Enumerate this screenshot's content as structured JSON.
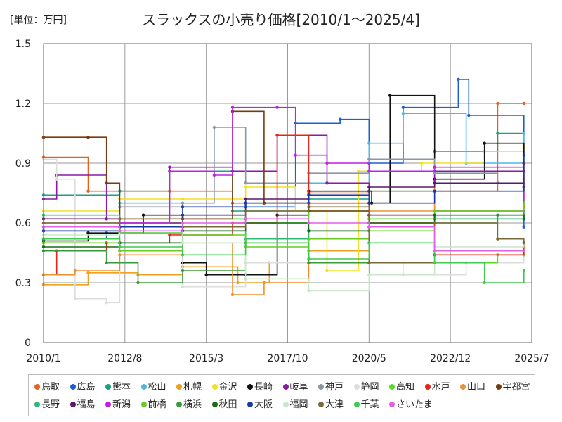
{
  "header": {
    "unit_label": "[単位：万円]",
    "title": "スラックスの小売り価格[2010/1～2025/4]"
  },
  "chart_data": {
    "type": "line",
    "title": "スラックスの小売り価格[2010/1～2025/4]",
    "unit": "[単位：万円]",
    "x_start": "2010/1",
    "x_end": "2025/7",
    "x_ticks": [
      "2010/1",
      "2012/8",
      "2015/3",
      "2017/10",
      "2020/5",
      "2022/12",
      "2025/7"
    ],
    "ylim": [
      0,
      1.5
    ],
    "y_ticks": [
      "0",
      "0.3",
      "0.6",
      "0.9",
      "1.2",
      "1.5"
    ],
    "grid": true,
    "legend_position": "bottom",
    "series": [
      {
        "name": "鳥取",
        "color": "#e8601c",
        "points": [
          [
            "2010/1",
            0.93
          ],
          [
            "2011/6",
            0.76
          ],
          [
            "2014/1",
            0.76
          ],
          [
            "2016/1",
            0.7
          ],
          [
            "2018/6",
            0.75
          ],
          [
            "2020/5",
            0.76
          ],
          [
            "2022/6",
            0.76
          ],
          [
            "2024/6",
            1.2
          ],
          [
            "2025/4",
            1.2
          ]
        ]
      },
      {
        "name": "広島",
        "color": "#1a5fd6",
        "points": [
          [
            "2010/1",
            0.52
          ],
          [
            "2012/1",
            0.55
          ],
          [
            "2014/6",
            0.62
          ],
          [
            "2016/6",
            0.68
          ],
          [
            "2018/1",
            1.1
          ],
          [
            "2019/6",
            1.12
          ],
          [
            "2020/5",
            0.9
          ],
          [
            "2021/6",
            1.18
          ],
          [
            "2023/3",
            1.32
          ],
          [
            "2023/7",
            1.14
          ],
          [
            "2025/4",
            0.58
          ]
        ]
      },
      {
        "name": "熊本",
        "color": "#1aa08a",
        "points": [
          [
            "2010/1",
            0.74
          ],
          [
            "2012/6",
            0.76
          ],
          [
            "2014/1",
            0.86
          ],
          [
            "2016/1",
            0.66
          ],
          [
            "2018/6",
            0.72
          ],
          [
            "2020/5",
            0.76
          ],
          [
            "2022/6",
            0.96
          ],
          [
            "2024/6",
            1.05
          ],
          [
            "2025/4",
            1.05
          ]
        ]
      },
      {
        "name": "松山",
        "color": "#4db8e8",
        "points": [
          [
            "2010/1",
            0.58
          ],
          [
            "2012/6",
            0.7
          ],
          [
            "2014/6",
            0.64
          ],
          [
            "2016/6",
            0.7
          ],
          [
            "2018/6",
            0.8
          ],
          [
            "2020/5",
            1.0
          ],
          [
            "2021/6",
            1.15
          ],
          [
            "2023/6",
            0.9
          ],
          [
            "2025/4",
            1.05
          ]
        ]
      },
      {
        "name": "札幌",
        "color": "#f0a020",
        "points": [
          [
            "2010/1",
            0.29
          ],
          [
            "2011/6",
            0.35
          ],
          [
            "2013/1",
            0.34
          ],
          [
            "2014/6",
            0.38
          ],
          [
            "2016/3",
            0.3
          ],
          [
            "2017/3",
            0.4
          ],
          [
            "2018/6",
            0.46
          ],
          [
            "2020/5",
            0.6
          ],
          [
            "2022/6",
            0.62
          ],
          [
            "2025/4",
            0.68
          ]
        ]
      },
      {
        "name": "金沢",
        "color": "#f4e020",
        "points": [
          [
            "2010/1",
            0.66
          ],
          [
            "2012/6",
            0.72
          ],
          [
            "2014/6",
            0.72
          ],
          [
            "2016/6",
            0.78
          ],
          [
            "2018/1",
            0.66
          ],
          [
            "2019/1",
            0.36
          ],
          [
            "2020/1",
            0.86
          ],
          [
            "2022/1",
            0.9
          ],
          [
            "2024/1",
            0.96
          ],
          [
            "2025/4",
            0.98
          ]
        ]
      },
      {
        "name": "長崎",
        "color": "#111111",
        "points": [
          [
            "2010/1",
            0.51
          ],
          [
            "2011/6",
            0.55
          ],
          [
            "2013/3",
            0.64
          ],
          [
            "2014/6",
            0.4
          ],
          [
            "2015/3",
            0.34
          ],
          [
            "2016/6",
            0.34
          ],
          [
            "2017/6",
            0.64
          ],
          [
            "2018/6",
            0.76
          ],
          [
            "2020/6",
            0.7
          ],
          [
            "2021/1",
            1.24
          ],
          [
            "2022/6",
            0.82
          ],
          [
            "2024/1",
            1.0
          ],
          [
            "2025/4",
            0.9
          ]
        ]
      },
      {
        "name": "岐阜",
        "color": "#8a1aa8",
        "points": [
          [
            "2010/1",
            0.72
          ],
          [
            "2010/6",
            0.84
          ],
          [
            "2012/1",
            0.62
          ],
          [
            "2014/1",
            0.88
          ],
          [
            "2016/1",
            0.86
          ],
          [
            "2017/6",
            1.04
          ],
          [
            "2019/1",
            0.8
          ],
          [
            "2020/5",
            0.64
          ],
          [
            "2022/6",
            0.86
          ],
          [
            "2025/4",
            0.86
          ]
        ]
      },
      {
        "name": "神戸",
        "color": "#8c96a8",
        "points": [
          [
            "2010/1",
            0.6
          ],
          [
            "2012/6",
            0.68
          ],
          [
            "2014/6",
            0.7
          ],
          [
            "2015/6",
            1.08
          ],
          [
            "2016/6",
            0.8
          ],
          [
            "2018/6",
            0.85
          ],
          [
            "2020/5",
            0.92
          ],
          [
            "2022/6",
            0.85
          ],
          [
            "2024/6",
            0.8
          ],
          [
            "2025/4",
            0.8
          ]
        ]
      },
      {
        "name": "静岡",
        "color": "#dddddd",
        "points": [
          [
            "2010/1",
            0.92
          ],
          [
            "2010/6",
            0.82
          ],
          [
            "2011/1",
            0.22
          ],
          [
            "2012/1",
            0.2
          ],
          [
            "2012/6",
            0.46
          ],
          [
            "2014/6",
            0.28
          ],
          [
            "2016/6",
            0.4
          ],
          [
            "2018/6",
            0.4
          ],
          [
            "2020/5",
            0.4
          ],
          [
            "2021/6",
            0.34
          ],
          [
            "2023/6",
            0.4
          ],
          [
            "2025/4",
            0.44
          ]
        ]
      },
      {
        "name": "高知",
        "color": "#55dd22",
        "points": [
          [
            "2010/1",
            0.58
          ],
          [
            "2012/6",
            0.55
          ],
          [
            "2014/6",
            0.62
          ],
          [
            "2016/6",
            0.6
          ],
          [
            "2018/6",
            0.66
          ],
          [
            "2020/5",
            0.62
          ],
          [
            "2022/6",
            0.4
          ],
          [
            "2024/6",
            0.44
          ],
          [
            "2025/4",
            0.44
          ]
        ]
      },
      {
        "name": "水戸",
        "color": "#e82418",
        "points": [
          [
            "2010/1",
            0.34
          ],
          [
            "2010/6",
            0.46
          ],
          [
            "2012/1",
            0.5
          ],
          [
            "2014/1",
            0.54
          ],
          [
            "2016/1",
            0.6
          ],
          [
            "2017/6",
            1.04
          ],
          [
            "2018/6",
            0.7
          ],
          [
            "2020/5",
            0.6
          ],
          [
            "2022/6",
            0.44
          ],
          [
            "2025/4",
            0.48
          ]
        ]
      },
      {
        "name": "山口",
        "color": "#f09030",
        "points": [
          [
            "2010/1",
            0.34
          ],
          [
            "2011/1",
            0.36
          ],
          [
            "2012/6",
            0.44
          ],
          [
            "2014/6",
            0.5
          ],
          [
            "2016/1",
            0.24
          ],
          [
            "2017/1",
            0.3
          ],
          [
            "2018/6",
            0.56
          ],
          [
            "2020/5",
            0.66
          ],
          [
            "2022/6",
            0.8
          ],
          [
            "2025/4",
            0.82
          ]
        ]
      },
      {
        "name": "宇都宮",
        "color": "#7a3a10",
        "points": [
          [
            "2010/1",
            1.03
          ],
          [
            "2011/6",
            1.03
          ],
          [
            "2012/1",
            0.8
          ],
          [
            "2012/6",
            0.58
          ],
          [
            "2014/6",
            0.62
          ],
          [
            "2016/1",
            1.16
          ],
          [
            "2017/1",
            0.7
          ],
          [
            "2018/6",
            0.66
          ],
          [
            "2020/5",
            0.64
          ],
          [
            "2022/6",
            0.66
          ],
          [
            "2025/4",
            0.9
          ]
        ]
      },
      {
        "name": "長野",
        "color": "#30b878",
        "points": [
          [
            "2010/1",
            0.64
          ],
          [
            "2012/6",
            0.5
          ],
          [
            "2014/6",
            0.56
          ],
          [
            "2016/6",
            0.52
          ],
          [
            "2018/6",
            0.56
          ],
          [
            "2020/5",
            0.58
          ],
          [
            "2022/6",
            0.62
          ],
          [
            "2025/4",
            0.66
          ]
        ]
      },
      {
        "name": "福島",
        "color": "#5a1a6a",
        "points": [
          [
            "2010/1",
            0.62
          ],
          [
            "2012/6",
            0.6
          ],
          [
            "2014/6",
            0.64
          ],
          [
            "2016/6",
            0.72
          ],
          [
            "2018/6",
            0.74
          ],
          [
            "2020/5",
            0.78
          ],
          [
            "2022/6",
            0.8
          ],
          [
            "2025/4",
            0.78
          ]
        ]
      },
      {
        "name": "新潟",
        "color": "#c020e0",
        "points": [
          [
            "2010/1",
            0.56
          ],
          [
            "2012/6",
            0.6
          ],
          [
            "2014/1",
            0.86
          ],
          [
            "2015/6",
            0.84
          ],
          [
            "2016/1",
            1.18
          ],
          [
            "2017/6",
            1.18
          ],
          [
            "2018/1",
            0.94
          ],
          [
            "2019/1",
            0.9
          ],
          [
            "2020/5",
            0.86
          ],
          [
            "2022/6",
            0.88
          ],
          [
            "2025/4",
            0.66
          ]
        ]
      },
      {
        "name": "前橋",
        "color": "#66cc22",
        "points": [
          [
            "2010/1",
            0.5
          ],
          [
            "2012/6",
            0.46
          ],
          [
            "2014/6",
            0.54
          ],
          [
            "2016/6",
            0.48
          ],
          [
            "2018/6",
            0.52
          ],
          [
            "2020/5",
            0.56
          ],
          [
            "2022/6",
            0.66
          ],
          [
            "2025/4",
            0.7
          ]
        ]
      },
      {
        "name": "横浜",
        "color": "#3a9a3a",
        "points": [
          [
            "2010/1",
            0.46
          ],
          [
            "2012/1",
            0.4
          ],
          [
            "2013/1",
            0.3
          ],
          [
            "2014/6",
            0.36
          ],
          [
            "2016/6",
            0.5
          ],
          [
            "2018/6",
            0.4
          ],
          [
            "2020/5",
            0.58
          ],
          [
            "2022/6",
            0.6
          ],
          [
            "2024/6",
            0.64
          ],
          [
            "2025/4",
            0.64
          ]
        ]
      },
      {
        "name": "秋田",
        "color": "#1a6a1a",
        "points": [
          [
            "2010/1",
            0.48
          ],
          [
            "2012/6",
            0.5
          ],
          [
            "2014/6",
            0.56
          ],
          [
            "2016/6",
            0.6
          ],
          [
            "2018/6",
            0.56
          ],
          [
            "2020/5",
            0.6
          ],
          [
            "2022/6",
            0.64
          ],
          [
            "2025/4",
            0.62
          ]
        ]
      },
      {
        "name": "大阪",
        "color": "#1a3aa0",
        "points": [
          [
            "2010/1",
            0.56
          ],
          [
            "2012/6",
            0.58
          ],
          [
            "2014/6",
            0.68
          ],
          [
            "2016/6",
            0.7
          ],
          [
            "2018/6",
            0.74
          ],
          [
            "2020/5",
            0.7
          ],
          [
            "2022/6",
            0.76
          ],
          [
            "2025/4",
            0.94
          ]
        ]
      },
      {
        "name": "福岡",
        "color": "#c8e8c8",
        "points": [
          [
            "2010/1",
            0.54
          ],
          [
            "2012/6",
            0.56
          ],
          [
            "2014/6",
            0.5
          ],
          [
            "2016/6",
            0.32
          ],
          [
            "2018/6",
            0.26
          ],
          [
            "2020/5",
            0.34
          ],
          [
            "2022/6",
            0.48
          ],
          [
            "2025/4",
            0.5
          ]
        ]
      },
      {
        "name": "大津",
        "color": "#7a6a3a",
        "points": [
          [
            "2010/1",
            0.6
          ],
          [
            "2012/6",
            0.62
          ],
          [
            "2014/6",
            0.58
          ],
          [
            "2016/6",
            0.66
          ],
          [
            "2018/6",
            0.68
          ],
          [
            "2020/5",
            0.4
          ],
          [
            "2022/6",
            0.6
          ],
          [
            "2024/6",
            0.52
          ],
          [
            "2025/4",
            0.5
          ]
        ]
      },
      {
        "name": "千葉",
        "color": "#40c850",
        "points": [
          [
            "2010/1",
            0.52
          ],
          [
            "2012/6",
            0.48
          ],
          [
            "2014/6",
            0.44
          ],
          [
            "2016/6",
            0.5
          ],
          [
            "2018/6",
            0.42
          ],
          [
            "2020/5",
            0.5
          ],
          [
            "2022/6",
            0.4
          ],
          [
            "2024/1",
            0.3
          ],
          [
            "2025/4",
            0.36
          ]
        ]
      },
      {
        "name": "さいたま",
        "color": "#e060e8",
        "points": [
          [
            "2010/1",
            0.58
          ],
          [
            "2012/6",
            0.56
          ],
          [
            "2014/6",
            0.6
          ],
          [
            "2016/6",
            0.62
          ],
          [
            "2018/6",
            0.6
          ],
          [
            "2020/5",
            0.58
          ],
          [
            "2022/6",
            0.46
          ],
          [
            "2025/4",
            0.46
          ]
        ]
      }
    ]
  }
}
